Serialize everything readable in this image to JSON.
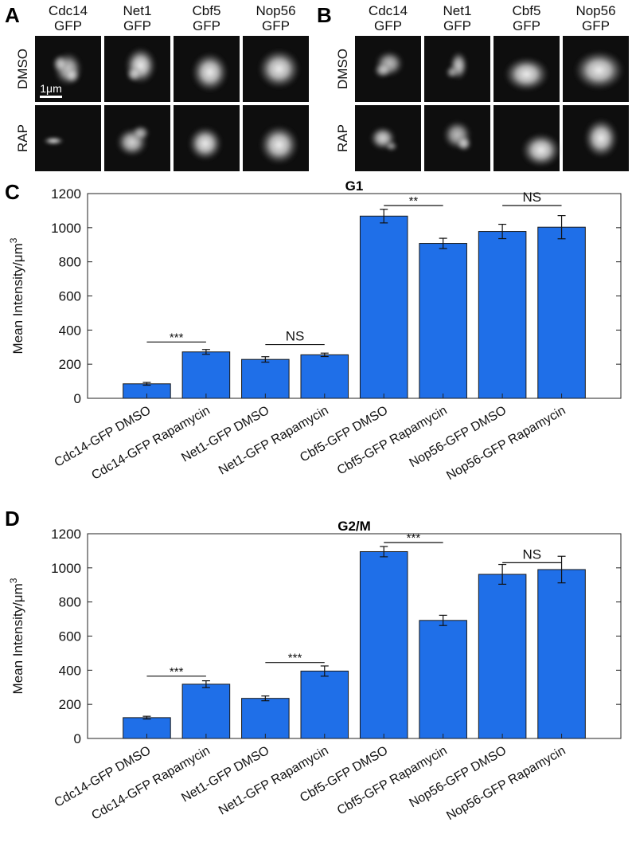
{
  "panels": {
    "A": {
      "letter": "A",
      "columns": [
        {
          "line1": "Cdc14",
          "line2": "GFP"
        },
        {
          "line1": "Net1",
          "line2": "GFP"
        },
        {
          "line1": "Cbf5",
          "line2": "GFP"
        },
        {
          "line1": "Nop56",
          "line2": "GFP"
        }
      ],
      "rows": [
        "DMSO",
        "RAP"
      ],
      "scale_bar": "1μm"
    },
    "B": {
      "letter": "B",
      "columns": [
        {
          "line1": "Cdc14",
          "line2": "GFP"
        },
        {
          "line1": "Net1",
          "line2": "GFP"
        },
        {
          "line1": "Cbf5",
          "line2": "GFP"
        },
        {
          "line1": "Nop56",
          "line2": "GFP"
        }
      ],
      "rows": [
        "DMSO",
        "RAP"
      ]
    }
  },
  "colors": {
    "bar": "#1f6fe8",
    "bar_edge": "#1a1a1a",
    "micrograph_bg": "#0e0e0e",
    "blob": "#f2f2f2"
  },
  "chart_data": [
    {
      "panel": "C",
      "type": "bar",
      "title": "G1",
      "ylabel": "Mean Intensity/μm",
      "ylabel_sup": "3",
      "ylim": [
        0,
        1200
      ],
      "yticks": [
        0,
        200,
        400,
        600,
        800,
        1000,
        1200
      ],
      "grid": false,
      "categories": [
        "Cdc14-GFP DMSO",
        "Cdc14-GFP Rapamycin",
        "Net1-GFP DMSO",
        "Net1-GFP Rapamycin",
        "Cbf5-GFP DMSO",
        "Cbf5-GFP Rapamycin",
        "Nop56-GFP DMSO",
        "Nop56-GFP Rapamycin"
      ],
      "values": [
        85,
        272,
        228,
        255,
        1068,
        908,
        978,
        1003
      ],
      "errors": [
        8,
        14,
        16,
        10,
        40,
        30,
        42,
        68
      ],
      "significance": [
        {
          "from": 0,
          "to": 1,
          "label": "***",
          "y": 330
        },
        {
          "from": 2,
          "to": 3,
          "label": "NS",
          "y": 315
        },
        {
          "from": 4,
          "to": 5,
          "label": "**",
          "y": 1130
        },
        {
          "from": 6,
          "to": 7,
          "label": "NS",
          "y": 1130
        }
      ]
    },
    {
      "panel": "D",
      "type": "bar",
      "title": "G2/M",
      "ylabel": "Mean Intensity/μm",
      "ylabel_sup": "3",
      "ylim": [
        0,
        1200
      ],
      "yticks": [
        0,
        200,
        400,
        600,
        800,
        1000,
        1200
      ],
      "grid": false,
      "categories": [
        "Cdc14-GFP DMSO",
        "Cdc14-GFP Rapamycin",
        "Net1-GFP DMSO",
        "Net1-GFP Rapamycin",
        "Cbf5-GFP DMSO",
        "Cbf5-GFP Rapamycin",
        "Nop56-GFP DMSO",
        "Nop56-GFP Rapamycin"
      ],
      "values": [
        122,
        318,
        235,
        395,
        1095,
        692,
        962,
        990
      ],
      "errors": [
        8,
        20,
        14,
        30,
        30,
        30,
        58,
        78
      ],
      "significance": [
        {
          "from": 0,
          "to": 1,
          "label": "***",
          "y": 365
        },
        {
          "from": 2,
          "to": 3,
          "label": "***",
          "y": 445
        },
        {
          "from": 4,
          "to": 5,
          "label": "***",
          "y": 1148
        },
        {
          "from": 6,
          "to": 7,
          "label": "NS",
          "y": 1030
        }
      ]
    }
  ]
}
